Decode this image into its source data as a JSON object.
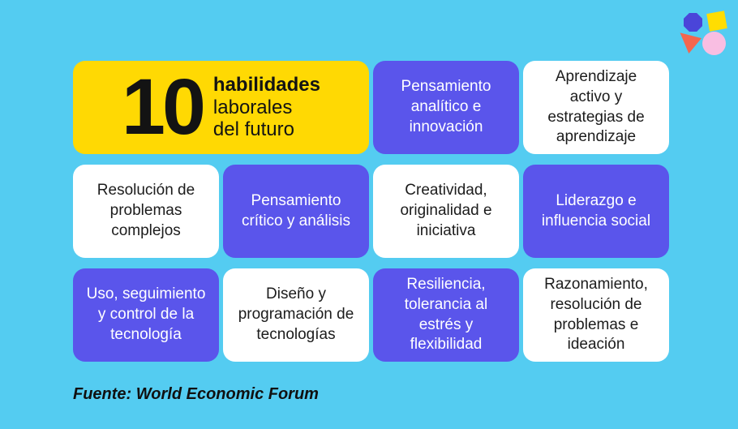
{
  "title_card": {
    "number": "10",
    "lines": [
      "habilidades",
      "laborales",
      "del futuro"
    ]
  },
  "cards": [
    {
      "label": "Pensamiento analítico e innovación",
      "variant": "purple"
    },
    {
      "label": "Aprendizaje activo y estrategias de aprendizaje",
      "variant": "white"
    },
    {
      "label": "Resolución de problemas complejos",
      "variant": "white"
    },
    {
      "label": "Pensamiento crítico y análisis",
      "variant": "purple"
    },
    {
      "label": "Creatividad, originalidad e iniciativa",
      "variant": "white"
    },
    {
      "label": "Liderazgo e influencia social",
      "variant": "purple"
    },
    {
      "label": "Uso, seguimiento y control de la tecnología",
      "variant": "purple"
    },
    {
      "label": "Diseño y programación de tecnologías",
      "variant": "white"
    },
    {
      "label": "Resiliencia, tolerancia al estrés y flexibilidad",
      "variant": "purple"
    },
    {
      "label": "Razonamiento, resolución de problemas e ideación",
      "variant": "white"
    }
  ],
  "footer": {
    "source": "Fuente: World Economic Forum"
  },
  "decorations": [
    {
      "name": "octagon",
      "color": "#4a45d9"
    },
    {
      "name": "square",
      "color": "#ffdd02"
    },
    {
      "name": "triangle",
      "color": "#f4664d"
    },
    {
      "name": "circle",
      "color": "#f9bee2"
    }
  ],
  "colors": {
    "background": "#54ccf1",
    "card_purple": "#5a55eb",
    "card_white": "#ffffff",
    "title_yellow": "#ffd903",
    "text_dark": "#1c1c1c",
    "text_light": "#ffffff"
  }
}
